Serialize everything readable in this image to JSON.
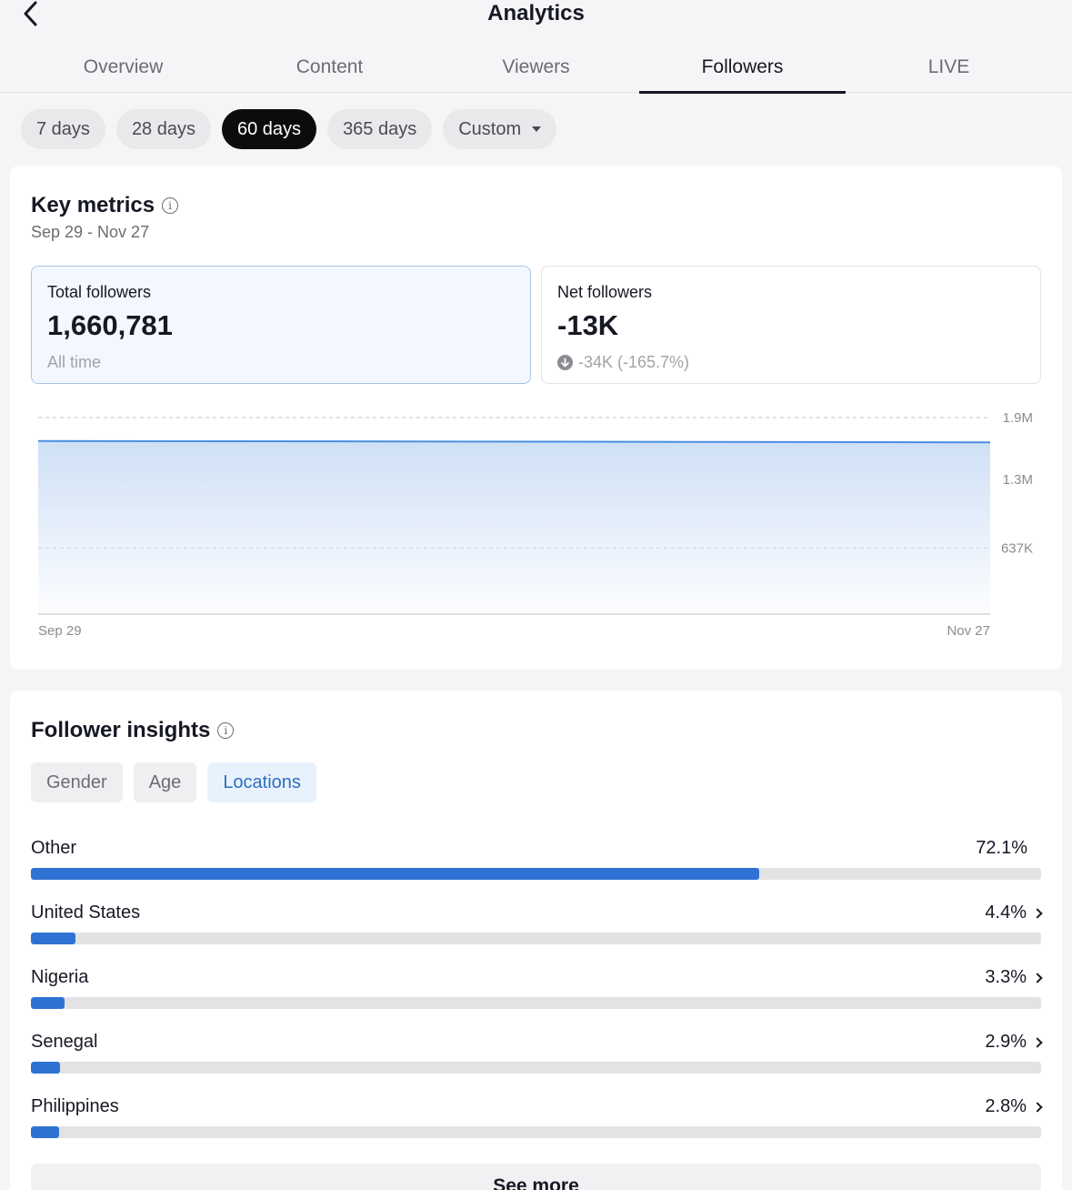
{
  "header": {
    "title": "Analytics",
    "back_icon": "chevron-left-icon"
  },
  "tabs": [
    {
      "label": "Overview",
      "active": false
    },
    {
      "label": "Content",
      "active": false
    },
    {
      "label": "Viewers",
      "active": false
    },
    {
      "label": "Followers",
      "active": true
    },
    {
      "label": "LIVE",
      "active": false
    }
  ],
  "ranges": [
    {
      "label": "7 days",
      "active": false
    },
    {
      "label": "28 days",
      "active": false
    },
    {
      "label": "60 days",
      "active": true
    },
    {
      "label": "365 days",
      "active": false
    },
    {
      "label": "Custom",
      "active": false,
      "dropdown": true
    }
  ],
  "key_metrics": {
    "title": "Key metrics",
    "date_range": "Sep 29 - Nov 27",
    "total": {
      "label": "Total followers",
      "value": "1,660,781",
      "sub": "All time"
    },
    "net": {
      "label": "Net followers",
      "value": "-13K",
      "change": "-34K (-165.7%)"
    }
  },
  "chart_data": {
    "type": "area",
    "x": [
      "Sep 29",
      "Nov 27"
    ],
    "xlabels": [
      "Sep 29",
      "Nov 27"
    ],
    "series": [
      {
        "values": [
          1674000,
          1660781
        ]
      }
    ],
    "yticks": [
      {
        "value": 1900000,
        "label": "1.9M"
      },
      {
        "value": 1300000,
        "label": "1.3M"
      },
      {
        "value": 637000,
        "label": "637K"
      }
    ],
    "ylim": [
      0,
      1900000
    ],
    "grid": true,
    "colors": {
      "line": "#4a8fe0",
      "fill": "#cfe0f6"
    }
  },
  "insights": {
    "title": "Follower insights",
    "sub_tabs": [
      {
        "label": "Gender",
        "active": false
      },
      {
        "label": "Age",
        "active": false
      },
      {
        "label": "Locations",
        "active": true
      }
    ],
    "locations": [
      {
        "name": "Other",
        "pct_label": "72.1%",
        "pct": 72.1,
        "chevron": false
      },
      {
        "name": "United States",
        "pct_label": "4.4%",
        "pct": 4.4,
        "chevron": true
      },
      {
        "name": "Nigeria",
        "pct_label": "3.3%",
        "pct": 3.3,
        "chevron": true
      },
      {
        "name": "Senegal",
        "pct_label": "2.9%",
        "pct": 2.9,
        "chevron": true
      },
      {
        "name": "Philippines",
        "pct_label": "2.8%",
        "pct": 2.8,
        "chevron": true
      }
    ],
    "see_more": "See more"
  }
}
